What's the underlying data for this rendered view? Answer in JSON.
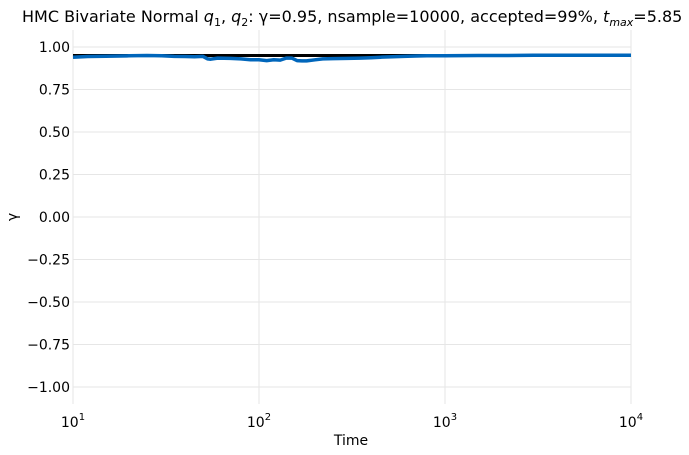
{
  "chart_data": {
    "type": "line",
    "title": {
      "lead": "HMC Bivariate Normal ",
      "q1": "q",
      "q1_sub": "1",
      "sep": ", ",
      "q2": "q",
      "q2_sub": "2",
      "rest": ": γ=0.95, nsample=10000, accepted=99%, ",
      "tmax": "t",
      "tmax_sub": "max",
      "tmax_val": "=5.85"
    },
    "xlabel": "Time",
    "ylabel": "γ",
    "xscale": "log",
    "xlim": [
      10,
      10000
    ],
    "ylim": [
      -1.1,
      1.1
    ],
    "grid": true,
    "x_ticks": [
      {
        "value": 10,
        "base": "10",
        "exp": "1"
      },
      {
        "value": 100,
        "base": "10",
        "exp": "2"
      },
      {
        "value": 1000,
        "base": "10",
        "exp": "3"
      },
      {
        "value": 10000,
        "base": "10",
        "exp": "4"
      }
    ],
    "y_ticks": [
      {
        "value": 1.0,
        "label": "1.00"
      },
      {
        "value": 0.75,
        "label": "0.75"
      },
      {
        "value": 0.5,
        "label": "0.50"
      },
      {
        "value": 0.25,
        "label": "0.25"
      },
      {
        "value": 0.0,
        "label": "0.00"
      },
      {
        "value": -0.25,
        "label": "−0.25"
      },
      {
        "value": -0.5,
        "label": "−0.50"
      },
      {
        "value": -0.75,
        "label": "−0.75"
      },
      {
        "value": -1.0,
        "label": "−1.00"
      }
    ],
    "series": [
      {
        "role": "target",
        "color": "#000000",
        "x": [
          10,
          10000
        ],
        "y": [
          0.95,
          0.95
        ]
      },
      {
        "role": "estimate",
        "color": "#0066bb",
        "x": [
          10,
          12,
          15,
          20,
          25,
          30,
          35,
          40,
          45,
          50,
          53,
          55,
          60,
          70,
          80,
          90,
          100,
          110,
          120,
          130,
          140,
          150,
          160,
          170,
          180,
          200,
          220,
          250,
          300,
          350,
          400,
          450,
          500,
          600,
          700,
          800,
          1000,
          1500,
          2000,
          3000,
          5000,
          7000,
          10000
        ],
        "y": [
          0.94,
          0.944,
          0.946,
          0.948,
          0.95,
          0.948,
          0.945,
          0.944,
          0.943,
          0.945,
          0.93,
          0.928,
          0.935,
          0.933,
          0.93,
          0.925,
          0.925,
          0.92,
          0.925,
          0.923,
          0.935,
          0.935,
          0.92,
          0.918,
          0.918,
          0.925,
          0.93,
          0.932,
          0.933,
          0.935,
          0.937,
          0.94,
          0.942,
          0.945,
          0.947,
          0.948,
          0.948,
          0.95,
          0.95,
          0.951,
          0.951,
          0.952,
          0.952
        ]
      }
    ]
  }
}
